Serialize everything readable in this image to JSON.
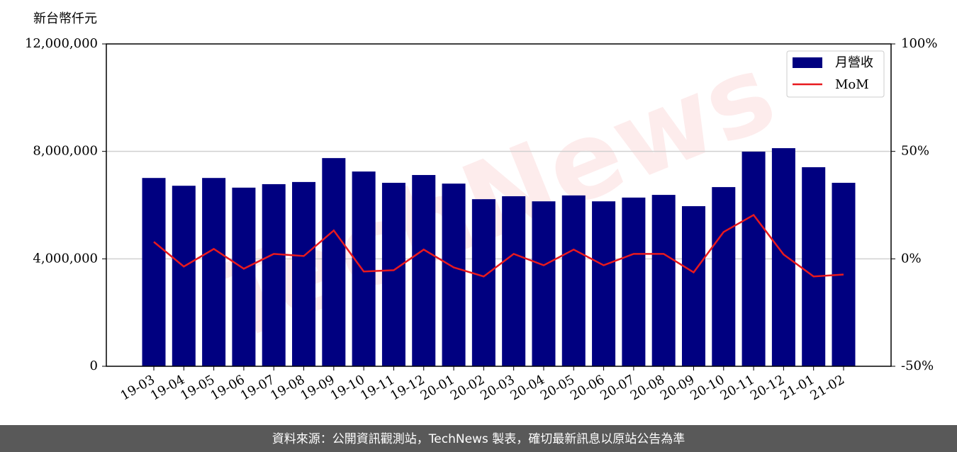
{
  "chart_data": {
    "type": "bar-line",
    "y_label": "新台幣仟元",
    "watermark": "TechNews",
    "footer": "資料來源：公開資訊觀測站，TechNews 製表，確切最新訊息以原站公告為準",
    "categories": [
      "19-03",
      "19-04",
      "19-05",
      "19-06",
      "19-07",
      "19-08",
      "19-09",
      "19-10",
      "19-11",
      "19-12",
      "20-01",
      "20-02",
      "20-03",
      "20-04",
      "20-05",
      "20-06",
      "20-07",
      "20-08",
      "20-09",
      "20-10",
      "20-11",
      "20-12",
      "21-01",
      "21-02"
    ],
    "series": [
      {
        "name": "月營收",
        "color": "#000080",
        "kind": "bar",
        "values": [
          7010000,
          6720000,
          7010000,
          6650000,
          6780000,
          6860000,
          7750000,
          7250000,
          6830000,
          7120000,
          6800000,
          6220000,
          6330000,
          6140000,
          6360000,
          6140000,
          6280000,
          6380000,
          5960000,
          6670000,
          7990000,
          8120000,
          7410000,
          6830000
        ]
      },
      {
        "name": "MoM",
        "color": "#e8191e",
        "kind": "line",
        "axis": "y2",
        "values": [
          7.9,
          -3.6,
          4.6,
          -4.6,
          2.3,
          1.3,
          13.2,
          -5.9,
          -5.3,
          4.3,
          -4.0,
          -8.2,
          2.3,
          -3.0,
          4.3,
          -3.0,
          2.3,
          2.3,
          -6.3,
          12.5,
          20.4,
          2.0,
          -8.2,
          -7.3
        ]
      }
    ],
    "ylim": [
      0,
      12000000
    ],
    "yticks": [
      0,
      {
        "value": 4000000,
        "label": "4,000,000"
      },
      {
        "value": 8000000,
        "label": "8,000,000"
      },
      {
        "value": 12000000,
        "label": "12,000,000"
      }
    ],
    "y2lim": [
      -50,
      100
    ],
    "y2ticks": [
      {
        "value": -50,
        "label": "-50%"
      },
      {
        "value": 0,
        "label": "0%"
      },
      {
        "value": 50,
        "label": "50%"
      },
      {
        "value": 100,
        "label": "100%"
      }
    ],
    "grid": true,
    "legend": "upper right"
  }
}
